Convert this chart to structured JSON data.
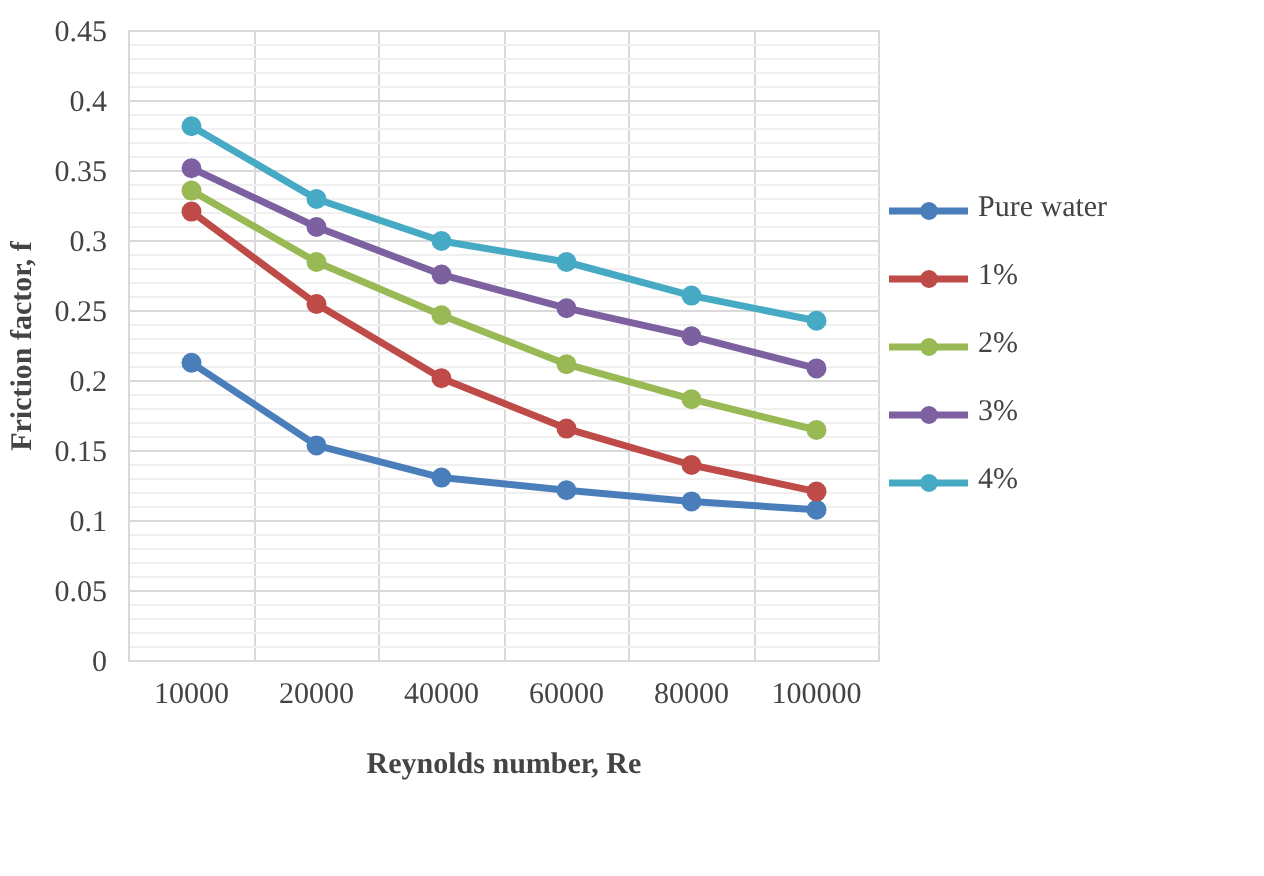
{
  "chart_data": {
    "type": "line",
    "xlabel": "Reynolds number, Re",
    "ylabel": "Friction factor, f",
    "categories": [
      "10000",
      "20000",
      "40000",
      "60000",
      "80000",
      "100000"
    ],
    "series": [
      {
        "name": "Pure water",
        "color": "#4a7ebb",
        "values": [
          0.213,
          0.154,
          0.131,
          0.122,
          0.114,
          0.108
        ]
      },
      {
        "name": "1%",
        "color": "#be4b48",
        "values": [
          0.321,
          0.255,
          0.202,
          0.166,
          0.14,
          0.121
        ]
      },
      {
        "name": "2%",
        "color": "#98b954",
        "values": [
          0.336,
          0.285,
          0.247,
          0.212,
          0.187,
          0.165
        ]
      },
      {
        "name": "3%",
        "color": "#7d60a0",
        "values": [
          0.352,
          0.31,
          0.276,
          0.252,
          0.232,
          0.209
        ]
      },
      {
        "name": "4%",
        "color": "#46aac5",
        "values": [
          0.382,
          0.33,
          0.3,
          0.285,
          0.261,
          0.243
        ]
      }
    ],
    "ylim": [
      0,
      0.45
    ],
    "yticks": [
      0,
      0.05,
      0.1,
      0.15,
      0.2,
      0.25,
      0.3,
      0.35,
      0.4,
      0.45
    ],
    "grid": true,
    "legend": "right",
    "marker": "circle",
    "line_style": "solid"
  }
}
